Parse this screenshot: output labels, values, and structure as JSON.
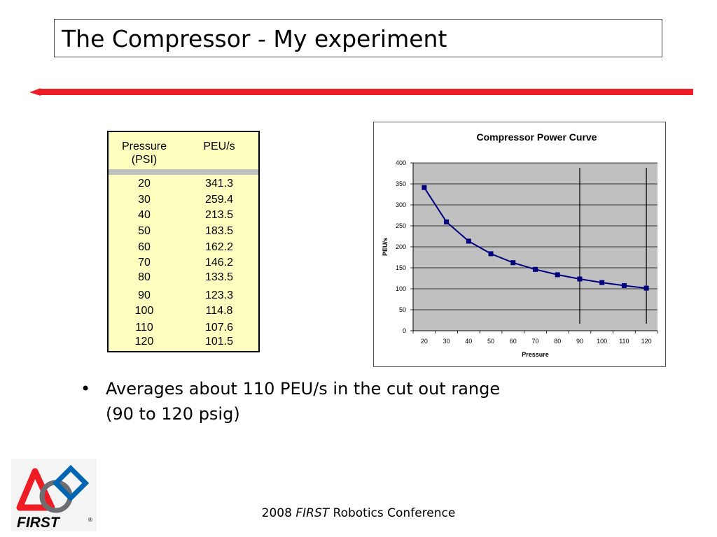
{
  "slide": {
    "title": "The Compressor - My experiment",
    "bullet_symbol": "•",
    "bullet_line1": "Averages about 110 PEU/s in the cut out range",
    "bullet_line2": "(90 to 120 psig)",
    "footer_year": "2008 ",
    "footer_brand": "FIRST",
    "footer_rest": " Robotics Conference",
    "logo_text": "FIRST",
    "logo_mark": "®",
    "accent_color": "#ee1c24"
  },
  "table": {
    "header_pressure_line1": "Pressure",
    "header_pressure_line2": "(PSI)",
    "header_value": "PEU/s",
    "rows": [
      {
        "p": "20",
        "v": "341.3"
      },
      {
        "p": "30",
        "v": "259.4"
      },
      {
        "p": "40",
        "v": "213.5"
      },
      {
        "p": "50",
        "v": "183.5"
      },
      {
        "p": "60",
        "v": "162.2"
      },
      {
        "p": "70",
        "v": "146.2"
      },
      {
        "p": "80",
        "v": "133.5"
      },
      {
        "p": "90",
        "v": "123.3"
      },
      {
        "p": "100",
        "v": "114.8"
      },
      {
        "p": "110",
        "v": "107.6"
      },
      {
        "p": "120",
        "v": "101.5"
      }
    ]
  },
  "chart_data": {
    "type": "line",
    "title": "Compressor Power Curve",
    "xlabel": "Pressure",
    "ylabel": "PEU/s",
    "categories": [
      "20",
      "30",
      "40",
      "50",
      "60",
      "70",
      "80",
      "90",
      "100",
      "110",
      "120"
    ],
    "series": [
      {
        "values": [
          341.3,
          259.4,
          213.5,
          183.5,
          162.2,
          146.2,
          133.5,
          123.3,
          114.8,
          107.6,
          101.5
        ],
        "color": "#000080"
      }
    ],
    "ylim": [
      0,
      400
    ],
    "yticks": [
      0,
      50,
      100,
      150,
      200,
      250,
      300,
      350,
      400
    ],
    "grid": true,
    "plot_background": "#c0c0c0",
    "vertical_markers": [
      "90",
      "120"
    ],
    "legend": "none"
  }
}
